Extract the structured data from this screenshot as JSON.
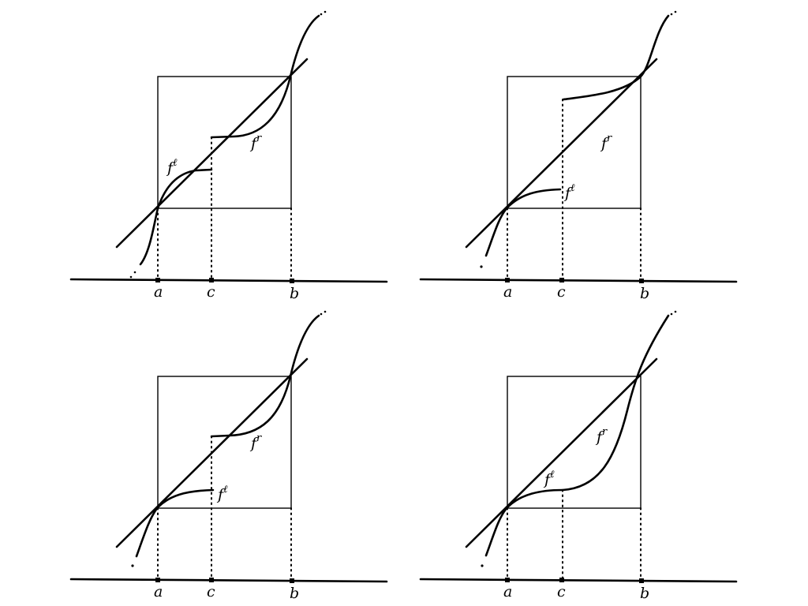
{
  "axis_labels": {
    "a": "a",
    "c": "c",
    "b": "b"
  },
  "function_labels": {
    "f": "f",
    "left_sup": "ℓ",
    "right_sup": "r"
  }
}
